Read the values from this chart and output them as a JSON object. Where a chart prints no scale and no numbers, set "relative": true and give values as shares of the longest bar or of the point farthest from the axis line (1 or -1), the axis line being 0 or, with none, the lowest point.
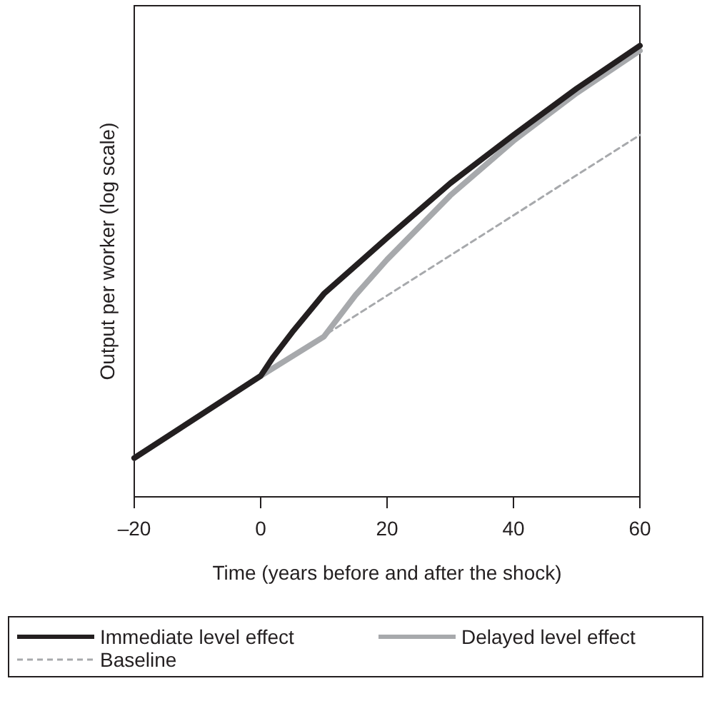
{
  "chart_data": {
    "type": "line",
    "relative": true,
    "xlabel": "Time (years before and after the shock)",
    "ylabel": "Output per worker (log scale)",
    "xlim": [
      -20,
      60
    ],
    "xticks": [
      {
        "value": -20,
        "label": "–20"
      },
      0,
      20,
      40,
      60
    ],
    "legend": "bottom",
    "grid": false,
    "marker": "none",
    "series": [
      {
        "name": "Immediate level effect",
        "color": "#231f20",
        "line_style": "solid",
        "x": [
          -20,
          0,
          2,
          5,
          10,
          20,
          30,
          40,
          50,
          60
        ],
        "values": [
          0.086,
          0.268,
          0.31,
          0.365,
          0.45,
          0.574,
          0.695,
          0.802,
          0.905,
          1.0
        ]
      },
      {
        "name": "Delayed level effect",
        "color": "#a7a9ac",
        "line_style": "solid",
        "x": [
          -20,
          0,
          10,
          15,
          20,
          30,
          40,
          50,
          60
        ],
        "values": [
          0.086,
          0.268,
          0.355,
          0.447,
          0.526,
          0.668,
          0.789,
          0.895,
          0.989
        ]
      },
      {
        "name": "Baseline",
        "color": "#a7a9ac",
        "line_style": "dashed",
        "x": [
          -20,
          0,
          60
        ],
        "values": [
          0.086,
          0.268,
          0.802
        ]
      }
    ]
  }
}
